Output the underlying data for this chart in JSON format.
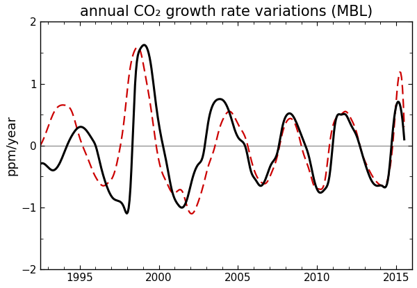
{
  "title": "annual CO₂ growth rate variations (MBL)",
  "ylabel": "ppm/year",
  "xlim": [
    1992.5,
    2016.0
  ],
  "ylim": [
    -2.0,
    2.0
  ],
  "yticks": [
    -2,
    -1,
    0,
    1,
    2
  ],
  "xticks": [
    1995,
    2000,
    2005,
    2010,
    2015
  ],
  "background_color": "#ffffff",
  "zero_line_color": "#808080",
  "black_line_color": "#000000",
  "red_line_color": "#cc0000",
  "black_linewidth": 2.2,
  "red_linewidth": 1.6,
  "title_fontsize": 15,
  "label_fontsize": 13,
  "tick_fontsize": 11,
  "black_x": [
    1992.5,
    1993.0,
    1993.3,
    1993.8,
    1994.2,
    1994.6,
    1995.0,
    1995.4,
    1995.8,
    1996.0,
    1996.3,
    1996.7,
    1997.1,
    1997.5,
    1997.8,
    1998.2,
    1998.5,
    1998.8,
    1999.2,
    1999.5,
    1999.8,
    2000.1,
    2000.5,
    2000.8,
    2001.2,
    2001.5,
    2001.8,
    2002.1,
    2002.5,
    2002.8,
    2003.1,
    2003.4,
    2003.8,
    2004.1,
    2004.5,
    2004.8,
    2005.1,
    2005.5,
    2005.8,
    2006.1,
    2006.4,
    2006.8,
    2007.1,
    2007.5,
    2007.8,
    2008.1,
    2008.4,
    2008.8,
    2009.1,
    2009.5,
    2009.8,
    2010.1,
    2010.5,
    2010.8,
    2011.1,
    2011.5,
    2011.8,
    2012.1,
    2012.5,
    2012.8,
    2013.1,
    2013.4,
    2013.8,
    2014.1,
    2014.5,
    2014.8,
    2015.0,
    2015.5
  ],
  "black_y": [
    -0.3,
    -0.35,
    -0.4,
    -0.25,
    0.0,
    0.2,
    0.3,
    0.25,
    0.1,
    0.0,
    -0.3,
    -0.65,
    -0.85,
    -0.9,
    -1.0,
    -0.7,
    1.0,
    1.55,
    1.6,
    1.3,
    0.7,
    0.2,
    -0.3,
    -0.7,
    -0.95,
    -1.0,
    -0.85,
    -0.55,
    -0.3,
    -0.15,
    0.35,
    0.65,
    0.75,
    0.72,
    0.5,
    0.25,
    0.1,
    -0.05,
    -0.4,
    -0.55,
    -0.65,
    -0.5,
    -0.3,
    -0.1,
    0.3,
    0.5,
    0.5,
    0.3,
    0.1,
    -0.2,
    -0.55,
    -0.75,
    -0.7,
    -0.45,
    0.3,
    0.5,
    0.5,
    0.35,
    0.15,
    -0.1,
    -0.35,
    -0.55,
    -0.65,
    -0.65,
    -0.5,
    0.3,
    0.65,
    0.1
  ],
  "red_x": [
    1992.5,
    1993.0,
    1993.4,
    1993.8,
    1994.1,
    1994.5,
    1994.8,
    1995.1,
    1995.5,
    1995.8,
    1996.1,
    1996.5,
    1996.8,
    1997.1,
    1997.5,
    1997.8,
    1998.1,
    1998.5,
    1998.8,
    1999.1,
    1999.5,
    1999.8,
    2000.1,
    2000.5,
    2000.8,
    2001.1,
    2001.5,
    2001.8,
    2002.1,
    2002.5,
    2002.8,
    2003.1,
    2003.5,
    2003.8,
    2004.1,
    2004.5,
    2004.8,
    2005.1,
    2005.5,
    2005.8,
    2006.1,
    2006.5,
    2006.8,
    2007.1,
    2007.5,
    2007.8,
    2008.1,
    2008.5,
    2008.8,
    2009.1,
    2009.5,
    2009.8,
    2010.1,
    2010.5,
    2010.8,
    2011.1,
    2011.5,
    2011.8,
    2012.1,
    2012.5,
    2012.8,
    2013.1,
    2013.5,
    2013.8,
    2014.1,
    2014.5,
    2014.8,
    2015.0,
    2015.5
  ],
  "red_y": [
    0.0,
    0.3,
    0.55,
    0.65,
    0.65,
    0.55,
    0.3,
    0.05,
    -0.2,
    -0.4,
    -0.55,
    -0.65,
    -0.6,
    -0.5,
    -0.1,
    0.4,
    1.1,
    1.55,
    1.55,
    1.2,
    0.6,
    0.05,
    -0.35,
    -0.6,
    -0.75,
    -0.75,
    -0.75,
    -1.0,
    -1.1,
    -0.9,
    -0.65,
    -0.35,
    -0.05,
    0.25,
    0.45,
    0.55,
    0.45,
    0.3,
    0.1,
    -0.2,
    -0.45,
    -0.6,
    -0.6,
    -0.45,
    -0.15,
    0.2,
    0.4,
    0.4,
    0.2,
    -0.1,
    -0.4,
    -0.65,
    -0.7,
    -0.55,
    0.05,
    0.4,
    0.5,
    0.55,
    0.45,
    0.2,
    -0.1,
    -0.3,
    -0.5,
    -0.6,
    -0.65,
    -0.5,
    0.1,
    0.75,
    0.3
  ]
}
